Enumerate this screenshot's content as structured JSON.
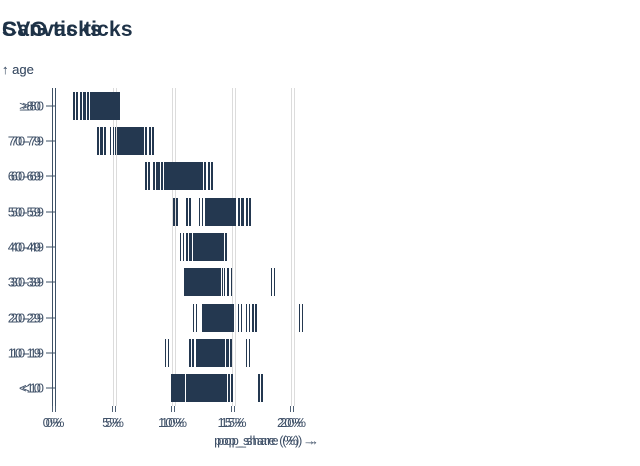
{
  "page": {
    "background": "#ffffff"
  },
  "charts": [
    {
      "id": "canvas",
      "title": "Canvas ticks"
    },
    {
      "id": "svg",
      "title": "SVG ticks"
    }
  ],
  "axes": {
    "y_label": "↑ age",
    "x_label": "pop_share (%) →",
    "x_ticks": [
      "0%",
      "5%",
      "10%",
      "15%",
      "20%"
    ],
    "x_tick_values": [
      0,
      5,
      10,
      15,
      20
    ],
    "x_domain": [
      0,
      21
    ],
    "grid": true
  },
  "colors": {
    "tick": "#243850",
    "grid": "#dcdcdc",
    "axis_line": "#3e5166",
    "title": "#1e3247",
    "label": "#42536a"
  },
  "chart_data": {
    "type": "scatter",
    "mark": "tickX",
    "note": "Two panels (Canvas ticks, SVG ticks) render the same one-dimensional strip/tick distributions of pop_share (%) per age group",
    "panels": [
      "Canvas ticks",
      "SVG ticks"
    ],
    "xlabel": "pop_share (%) →",
    "ylabel": "age",
    "xlim": [
      0,
      21
    ],
    "x_ticks_percent": [
      0,
      5,
      10,
      15,
      20
    ],
    "categories": [
      "≥80",
      "70-79",
      "60-69",
      "50-59",
      "40-49",
      "30-39",
      "20-29",
      "10-19",
      "<10"
    ],
    "values_by_age": {
      "≥80": [
        1.75,
        2.35,
        2.7,
        2.95,
        3.3,
        3.35,
        3.45,
        3.5,
        3.6,
        3.65,
        3.7,
        3.8,
        3.85,
        3.9,
        3.95,
        4.0,
        4.05,
        4.1,
        4.15,
        4.2,
        4.25,
        4.3,
        4.35,
        4.4,
        4.45,
        4.5,
        4.55,
        4.6,
        4.65,
        4.7,
        4.75,
        4.8,
        4.85,
        4.9,
        4.95,
        5.0,
        5.05,
        5.1,
        5.15,
        5.2,
        5.3
      ],
      "70-79": [
        3.8,
        4.1,
        4.85,
        5.3,
        5.4,
        5.5,
        5.55,
        5.6,
        5.7,
        5.75,
        5.8,
        5.85,
        5.9,
        5.95,
        6.0,
        6.05,
        6.1,
        6.15,
        6.2,
        6.25,
        6.3,
        6.35,
        6.4,
        6.45,
        6.5,
        6.55,
        6.6,
        6.65,
        6.7,
        6.75,
        6.8,
        6.85,
        6.9,
        6.95,
        7.0,
        7.05,
        7.1,
        7.2,
        7.3,
        7.5,
        7.85,
        8.15
      ],
      "60-69": [
        7.8,
        8.5,
        8.9,
        9.4,
        9.5,
        9.6,
        9.7,
        9.8,
        9.85,
        9.9,
        10.0,
        10.05,
        10.1,
        10.2,
        10.25,
        10.3,
        10.4,
        10.45,
        10.5,
        10.6,
        10.65,
        10.7,
        10.8,
        10.85,
        10.9,
        11.0,
        11.05,
        11.1,
        11.2,
        11.3,
        11.4,
        11.5,
        11.6,
        11.7,
        11.8,
        11.9,
        12.0,
        12.1,
        12.2,
        12.5,
        12.8,
        13.1
      ],
      "50-59": [
        10.15,
        11.25,
        12.3,
        12.8,
        12.9,
        12.95,
        13.0,
        13.05,
        13.1,
        13.15,
        13.2,
        13.3,
        13.35,
        13.4,
        13.45,
        13.5,
        13.55,
        13.6,
        13.65,
        13.7,
        13.75,
        13.8,
        13.85,
        13.9,
        13.95,
        14.0,
        14.05,
        14.1,
        14.2,
        14.25,
        14.3,
        14.4,
        14.5,
        14.6,
        14.7,
        14.8,
        14.9,
        15.0,
        15.1,
        15.65,
        16.0,
        16.3
      ],
      "40-49": [
        10.7,
        10.95,
        11.25,
        11.6,
        11.8,
        11.9,
        12.0,
        12.05,
        12.1,
        12.15,
        12.2,
        12.25,
        12.3,
        12.35,
        12.4,
        12.45,
        12.5,
        12.55,
        12.6,
        12.65,
        12.7,
        12.75,
        12.8,
        12.85,
        12.9,
        12.95,
        13.0,
        13.05,
        13.1,
        13.15,
        13.2,
        13.3,
        13.4,
        13.5,
        13.6,
        13.7,
        13.8,
        13.9,
        14.0,
        14.3
      ],
      "30-39": [
        11.05,
        11.15,
        11.25,
        11.35,
        11.45,
        11.55,
        11.65,
        11.75,
        11.85,
        11.95,
        12.0,
        12.1,
        12.15,
        12.2,
        12.3,
        12.35,
        12.4,
        12.5,
        12.55,
        12.6,
        12.7,
        12.75,
        12.8,
        12.9,
        12.95,
        13.0,
        13.1,
        13.2,
        13.3,
        13.4,
        13.5,
        13.6,
        13.7,
        13.8,
        14.0,
        14.4,
        14.75,
        18.35
      ],
      "20-29": [
        11.8,
        12.6,
        12.7,
        12.75,
        12.8,
        12.9,
        12.95,
        13.0,
        13.1,
        13.15,
        13.2,
        13.3,
        13.35,
        13.4,
        13.5,
        13.55,
        13.6,
        13.65,
        13.7,
        13.8,
        13.85,
        13.9,
        14.0,
        14.05,
        14.1,
        14.2,
        14.3,
        14.4,
        14.5,
        14.6,
        14.7,
        14.8,
        14.9,
        15.6,
        16.25,
        16.8,
        20.7
      ],
      "10-19": [
        9.45,
        11.5,
        12.1,
        12.2,
        12.3,
        12.4,
        12.45,
        12.5,
        12.6,
        12.65,
        12.7,
        12.8,
        12.85,
        12.9,
        12.95,
        13.0,
        13.05,
        13.1,
        13.2,
        13.25,
        13.3,
        13.4,
        13.45,
        13.5,
        13.6,
        13.65,
        13.7,
        13.8,
        13.9,
        14.0,
        14.1,
        14.35,
        14.7,
        16.25
      ],
      "<10": [
        10.0,
        10.15,
        10.3,
        10.4,
        10.6,
        10.7,
        10.8,
        11.2,
        11.3,
        11.4,
        11.5,
        11.6,
        11.7,
        11.8,
        12.1,
        12.2,
        12.3,
        12.4,
        12.5,
        12.6,
        12.7,
        12.85,
        12.95,
        13.05,
        13.15,
        13.25,
        13.35,
        13.45,
        13.6,
        13.7,
        13.8,
        13.9,
        14.0,
        14.2,
        14.3,
        14.55,
        14.8,
        17.3
      ]
    }
  }
}
